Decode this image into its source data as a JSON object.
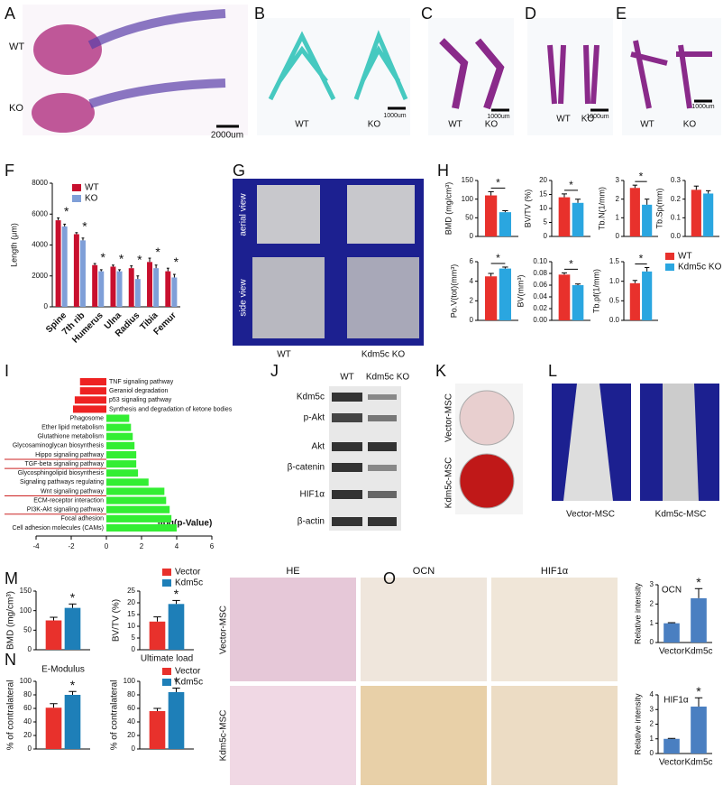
{
  "figure": {
    "panel_labels": [
      "A",
      "B",
      "C",
      "D",
      "E",
      "F",
      "G",
      "H",
      "I",
      "J",
      "K",
      "L",
      "M",
      "N",
      "O"
    ],
    "A": [
      "WT",
      "KO",
      "2000um"
    ],
    "B": [
      "WT",
      "KO",
      "1000um"
    ],
    "C": [
      "WT",
      "KO",
      "1000um"
    ],
    "D": [
      "WT",
      "KO",
      "1000um"
    ],
    "E": [
      "WT",
      "KO",
      "1000um"
    ],
    "G": [
      "aerial view",
      "side view",
      "WT",
      "Kdm5c KO"
    ],
    "J": {
      "columns": [
        "WT",
        "Kdm5c KO"
      ],
      "rows": [
        "Kdm5c",
        "p-Akt",
        "Akt",
        "β-catenin",
        "HIF1α",
        "β-actin"
      ]
    },
    "K": [
      "Vector-MSC",
      "Kdm5c-MSC"
    ],
    "L": [
      "Vector-MSC",
      "Kdm5c-MSC"
    ],
    "O": {
      "columns": [
        "HE",
        "OCN",
        "HIF1α"
      ],
      "rows": [
        "Vector-MSC",
        "Kdm5c-MSC"
      ]
    }
  },
  "chart_data": [
    {
      "type": "bar",
      "ylabel": "Length (μm)",
      "categories": [
        "Spine",
        "7th rib",
        "Humerus",
        "Ulna",
        "Radius",
        "Tibia",
        "Femur"
      ],
      "series": [
        {
          "name": "WT",
          "color": "#c8102e",
          "values": [
            5600,
            4700,
            2700,
            2600,
            2500,
            2900,
            2300
          ],
          "errors": [
            150,
            100,
            100,
            100,
            150,
            250,
            200
          ]
        },
        {
          "name": "KO",
          "color": "#7f9fd8",
          "values": [
            5200,
            4300,
            2300,
            2300,
            1800,
            2500,
            1900
          ],
          "errors": [
            150,
            150,
            100,
            100,
            200,
            200,
            200
          ]
        }
      ],
      "significance": [
        "*",
        "*",
        "*",
        "*",
        "*",
        "*",
        "*"
      ],
      "ylim": [
        0,
        8000
      ],
      "yticks": [
        0,
        2000,
        4000,
        6000,
        8000
      ],
      "legend": "upper left"
    },
    {
      "type": "bar",
      "ylabel": "BMD (mg/cm³)",
      "categories": [
        null
      ],
      "series": [
        {
          "name": "WT",
          "color": "#e8312c",
          "values": [
            110
          ],
          "errors": [
            10
          ]
        },
        {
          "name": "Kdm5c KO",
          "color": "#2aa6e0",
          "values": [
            65
          ],
          "errors": [
            4
          ]
        }
      ],
      "significance": [
        "*"
      ],
      "ylim": [
        0,
        150
      ],
      "yticks": [
        0,
        50,
        100,
        150
      ]
    },
    {
      "type": "bar",
      "ylabel": "BV/TV (%)",
      "categories": [
        null
      ],
      "series": [
        {
          "name": "WT",
          "color": "#e8312c",
          "values": [
            14
          ],
          "errors": [
            1.2
          ]
        },
        {
          "name": "Kdm5c KO",
          "color": "#2aa6e0",
          "values": [
            12
          ],
          "errors": [
            1.3
          ]
        }
      ],
      "significance": [
        "*"
      ],
      "ylim": [
        0,
        20
      ],
      "yticks": [
        0,
        5,
        10,
        15,
        20
      ]
    },
    {
      "type": "bar",
      "ylabel": "Tb.N(1/mm)",
      "categories": [
        null
      ],
      "series": [
        {
          "name": "WT",
          "color": "#e8312c",
          "values": [
            2.6
          ],
          "errors": [
            0.15
          ]
        },
        {
          "name": "Kdm5c KO",
          "color": "#2aa6e0",
          "values": [
            1.7
          ],
          "errors": [
            0.3
          ]
        }
      ],
      "significance": [
        "*"
      ],
      "ylim": [
        0,
        3
      ],
      "yticks": [
        0,
        1,
        2,
        3
      ]
    },
    {
      "type": "bar",
      "ylabel": "Tb.Sp(mm)",
      "categories": [
        null
      ],
      "series": [
        {
          "name": "WT",
          "color": "#e8312c",
          "values": [
            0.25
          ],
          "errors": [
            0.02
          ]
        },
        {
          "name": "Kdm5c KO",
          "color": "#2aa6e0",
          "values": [
            0.23
          ],
          "errors": [
            0.015
          ]
        }
      ],
      "ylim": [
        0,
        0.3
      ],
      "yticks": [
        {
          "value": 0,
          "label": "0.0"
        },
        0.1,
        0.2,
        0.3
      ]
    },
    {
      "type": "bar",
      "ylabel": "Po.V(tot)(mm³)",
      "categories": [
        null
      ],
      "series": [
        {
          "name": "WT",
          "color": "#e8312c",
          "values": [
            4.5
          ],
          "errors": [
            0.3
          ]
        },
        {
          "name": "Kdm5c KO",
          "color": "#2aa6e0",
          "values": [
            5.3
          ],
          "errors": [
            0.15
          ]
        }
      ],
      "significance": [
        "*"
      ],
      "ylim": [
        0,
        6
      ],
      "yticks": [
        0,
        2,
        4,
        6
      ]
    },
    {
      "type": "bar",
      "ylabel": "BV(mm³)",
      "categories": [
        null
      ],
      "series": [
        {
          "name": "WT",
          "color": "#e8312c",
          "values": [
            0.078
          ],
          "errors": [
            0.003
          ]
        },
        {
          "name": "Kdm5c KO",
          "color": "#2aa6e0",
          "values": [
            0.06
          ],
          "errors": [
            0.002
          ]
        }
      ],
      "significance": [
        "*"
      ],
      "ylim": [
        0,
        0.1
      ],
      "yticks": [
        {
          "value": 0,
          "label": "0.00"
        },
        0.02,
        0.04,
        0.06,
        0.08,
        {
          "value": 0.1,
          "label": "0.10"
        }
      ]
    },
    {
      "type": "bar",
      "ylabel": "Tb.pf(1/mm)",
      "categories": [
        null
      ],
      "series": [
        {
          "name": "WT",
          "color": "#e8312c",
          "values": [
            0.95
          ],
          "errors": [
            0.07
          ]
        },
        {
          "name": "Kdm5c KO",
          "color": "#2aa6e0",
          "values": [
            1.25
          ],
          "errors": [
            0.1
          ]
        }
      ],
      "significance": [
        "*"
      ],
      "ylim": [
        0,
        1.5
      ],
      "yticks": [
        {
          "value": 0,
          "label": "0.0"
        },
        0.5,
        {
          "value": 1,
          "label": "1.0"
        },
        1.5
      ],
      "legend": "right"
    },
    {
      "type": "hbar",
      "xlabel": "-log(p-Value)",
      "categories": [
        "TNF signaling pathway",
        "Geraniol degradation",
        "p53 signaling pathway",
        "Synthesis and degradation of ketone bodies",
        "Phagosome",
        "Ether lipid metabolism",
        "Glutathione metabolism",
        "Glycosaminoglycan biosynthesis",
        "Hippo signaling pathway",
        "TGF-beta signaling pathway",
        "Glycosphingolipid biosynthesis",
        "Signaling pathways regulating",
        "Wnt signaling pathway",
        "ECM-receptor interaction",
        "PI3K-Akt signaling pathway",
        "Focal adhesion",
        "Cell adhesion molecules (CAMs)"
      ],
      "values": [
        -1.5,
        -1.5,
        -1.8,
        -1.9,
        1.3,
        1.4,
        1.5,
        1.6,
        1.7,
        1.7,
        1.8,
        2.4,
        3.3,
        3.4,
        3.6,
        3.7,
        4.0
      ],
      "negative_color": "#ee2222",
      "positive_color": "#33ee33",
      "highlight_color": "#cc2222",
      "highlighted_rows": [
        8,
        9,
        12,
        14
      ],
      "xlim": [
        -4,
        6
      ],
      "xticks": [
        -4,
        -2,
        0,
        2,
        4,
        6
      ]
    },
    {
      "type": "bar",
      "ylabel": "BMD (mg/cm³)",
      "categories": [
        null
      ],
      "series": [
        {
          "name": "Vector",
          "color": "#e8312c",
          "values": [
            75
          ],
          "errors": [
            8
          ]
        },
        {
          "name": "Kdm5c",
          "color": "#1e7fb8",
          "values": [
            107
          ],
          "errors": [
            10
          ]
        }
      ],
      "significance": [
        "*"
      ],
      "ylim": [
        0,
        150
      ],
      "yticks": [
        0,
        50,
        100,
        150
      ]
    },
    {
      "type": "bar",
      "ylabel": "BV/TV (%)",
      "categories": [
        null
      ],
      "series": [
        {
          "name": "Vector",
          "color": "#e8312c",
          "values": [
            12
          ],
          "errors": [
            2
          ]
        },
        {
          "name": "Kdm5c",
          "color": "#1e7fb8",
          "values": [
            19.5
          ],
          "errors": [
            1.5
          ]
        }
      ],
      "significance": [
        "*"
      ],
      "ylim": [
        0,
        25
      ],
      "yticks": [
        0,
        5,
        10,
        15,
        20,
        25
      ],
      "legend": "upper left"
    },
    {
      "type": "bar",
      "title": "E-Modulus",
      "ylabel": "% of contralateral",
      "categories": [
        null
      ],
      "series": [
        {
          "name": "Vector",
          "color": "#e8312c",
          "values": [
            61
          ],
          "errors": [
            6
          ]
        },
        {
          "name": "Kdm5c",
          "color": "#1e7fb8",
          "values": [
            80
          ],
          "errors": [
            5
          ]
        }
      ],
      "significance": [
        "*"
      ],
      "ylim": [
        0,
        100
      ],
      "yticks": [
        0,
        20,
        40,
        60,
        80,
        100
      ]
    },
    {
      "type": "bar",
      "title": "Ultimate load",
      "ylabel": "% of contralateral",
      "categories": [
        null
      ],
      "series": [
        {
          "name": "Vector",
          "color": "#e8312c",
          "values": [
            56
          ],
          "errors": [
            4
          ]
        },
        {
          "name": "Kdm5c",
          "color": "#1e7fb8",
          "values": [
            84
          ],
          "errors": [
            6
          ]
        }
      ],
      "significance": [
        "*"
      ],
      "ylim": [
        0,
        100
      ],
      "yticks": [
        0,
        20,
        40,
        60,
        80,
        100
      ],
      "legend": "upper left"
    },
    {
      "type": "bar",
      "title": "OCN",
      "ylabel": "Relative intensity",
      "categories": [
        "Vector",
        "Kdm5c"
      ],
      "series": [
        {
          "color": "#4a7fc1",
          "values": [
            1,
            2.3
          ],
          "errors": [
            0.03,
            0.5
          ]
        }
      ],
      "significance": [
        null,
        "*"
      ],
      "ylim": [
        0,
        3
      ],
      "yticks": [
        0,
        1,
        2,
        3
      ]
    },
    {
      "type": "bar",
      "title": "HIF1α",
      "ylabel": "Relative intensity",
      "categories": [
        "Vector",
        "Kdm5c"
      ],
      "series": [
        {
          "color": "#4a7fc1",
          "values": [
            1,
            3.2
          ],
          "errors": [
            0.03,
            0.6
          ]
        }
      ],
      "significance": [
        null,
        "*"
      ],
      "ylim": [
        0,
        4
      ],
      "yticks": [
        0,
        1,
        2,
        3,
        4
      ]
    }
  ]
}
